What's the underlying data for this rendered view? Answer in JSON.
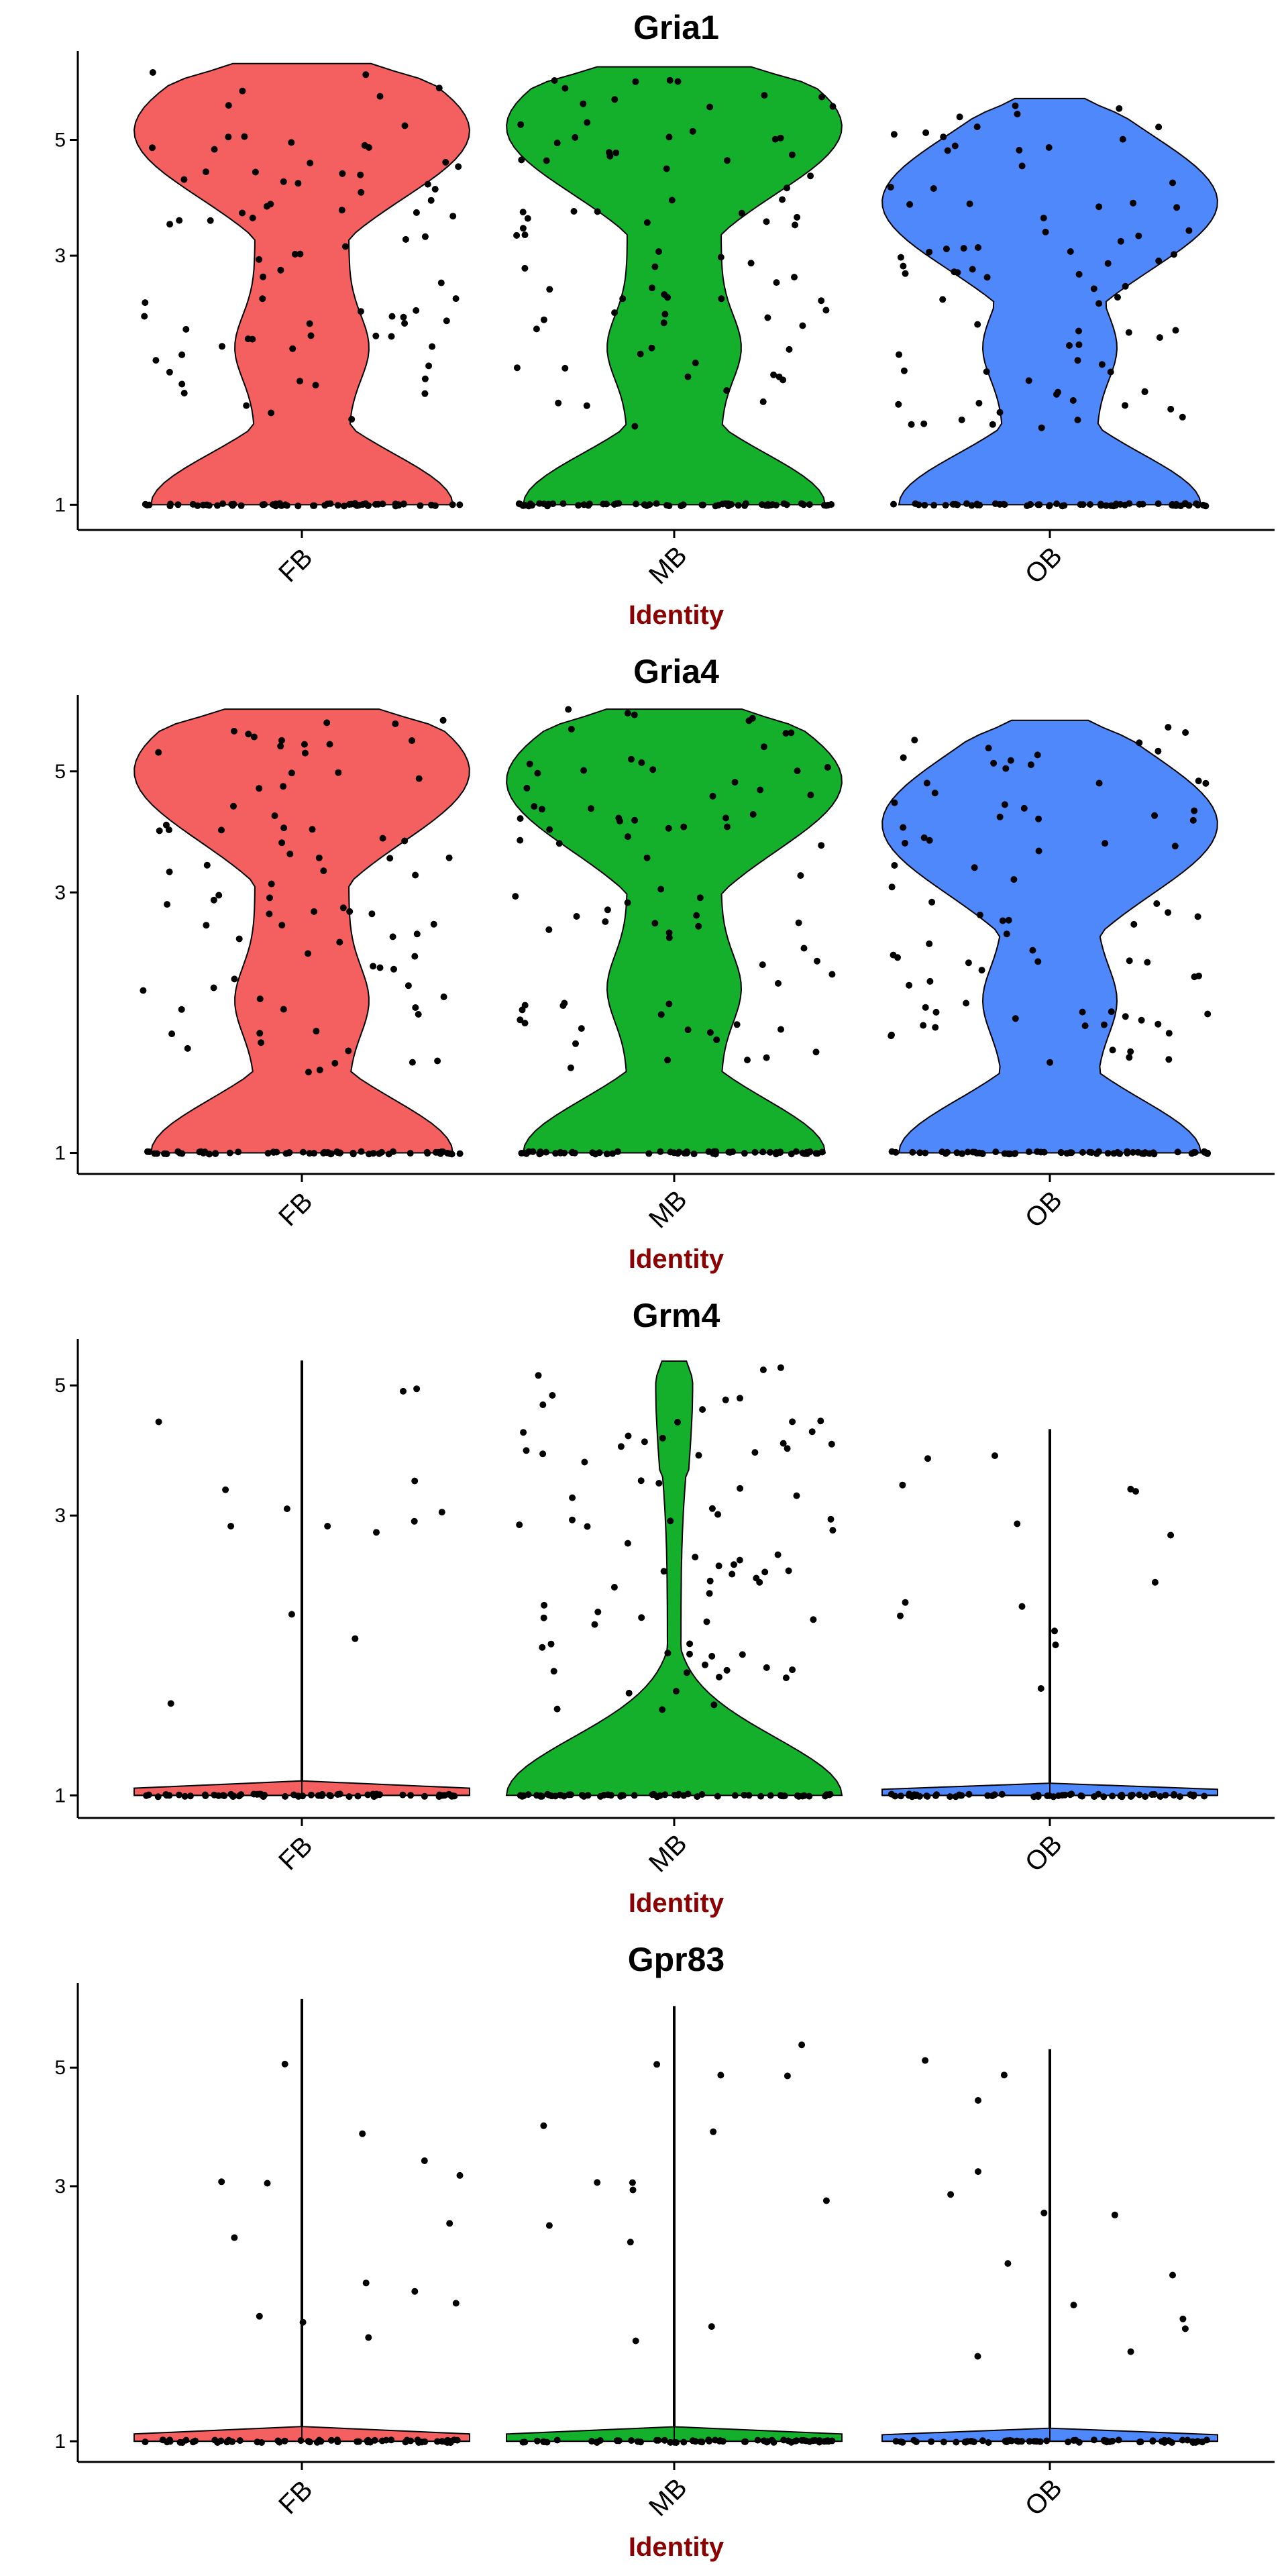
{
  "figure": {
    "colors": {
      "FB": "#f45f5f",
      "MB": "#15b02b",
      "OB": "#4f88fb",
      "points": "#000000",
      "axis_title": "#8b0000"
    }
  },
  "chart_data": [
    {
      "type": "violin",
      "title": "Gria1",
      "xlabel": "Identity",
      "categories": [
        "FB",
        "MB",
        "OB"
      ],
      "y_ticks": [
        1,
        3,
        5
      ],
      "ylim": [
        0.9,
        7.4
      ],
      "scale": "log",
      "series": [
        {
          "category": "FB",
          "modes": [
            1,
            5.2
          ],
          "low_density": 2.0,
          "max": 7.0,
          "min": 1.0
        },
        {
          "category": "MB",
          "modes": [
            1,
            5.3
          ],
          "low_density": 2.0,
          "max": 6.9,
          "min": 1.0
        },
        {
          "category": "OB",
          "modes": [
            1,
            3.8
          ],
          "low_density": 2.0,
          "max": 6.0,
          "min": 1.0
        }
      ]
    },
    {
      "type": "violin",
      "title": "Gria4",
      "xlabel": "Identity",
      "categories": [
        "FB",
        "MB",
        "OB"
      ],
      "y_ticks": [
        1,
        3,
        5
      ],
      "ylim": [
        0.92,
        6.9
      ],
      "scale": "log",
      "series": [
        {
          "category": "FB",
          "modes": [
            1,
            5.0
          ],
          "low_density": 1.9,
          "max": 6.5,
          "min": 1.0
        },
        {
          "category": "MB",
          "modes": [
            1,
            4.8
          ],
          "low_density": 2.0,
          "max": 6.5,
          "min": 1.0
        },
        {
          "category": "OB",
          "modes": [
            1,
            4.0
          ],
          "low_density": 1.9,
          "max": 6.2,
          "min": 1.0
        }
      ]
    },
    {
      "type": "violin",
      "title": "Grm4",
      "xlabel": "Identity",
      "categories": [
        "FB",
        "MB",
        "OB"
      ],
      "y_ticks": [
        1,
        3,
        5
      ],
      "ylim": [
        0.92,
        6.0
      ],
      "scale": "log",
      "series": [
        {
          "category": "FB",
          "modes": [
            1
          ],
          "max": 5.5,
          "min": 1.0
        },
        {
          "category": "MB",
          "modes": [
            1,
            5.0
          ],
          "low_density": 2.0,
          "max": 5.5,
          "min": 1.0
        },
        {
          "category": "OB",
          "modes": [
            1
          ],
          "max": 4.2,
          "min": 1.0
        }
      ]
    },
    {
      "type": "violin",
      "title": "Gpr83",
      "xlabel": "Identity",
      "categories": [
        "FB",
        "MB",
        "OB"
      ],
      "y_ticks": [
        1,
        3,
        5
      ],
      "ylim": [
        0.92,
        7.2
      ],
      "scale": "log",
      "series": [
        {
          "category": "FB",
          "modes": [
            1
          ],
          "max": 6.7,
          "min": 1.0
        },
        {
          "category": "MB",
          "modes": [
            1
          ],
          "max": 6.5,
          "min": 1.0
        },
        {
          "category": "OB",
          "modes": [
            1
          ],
          "max": 5.4,
          "min": 1.0
        }
      ]
    }
  ]
}
